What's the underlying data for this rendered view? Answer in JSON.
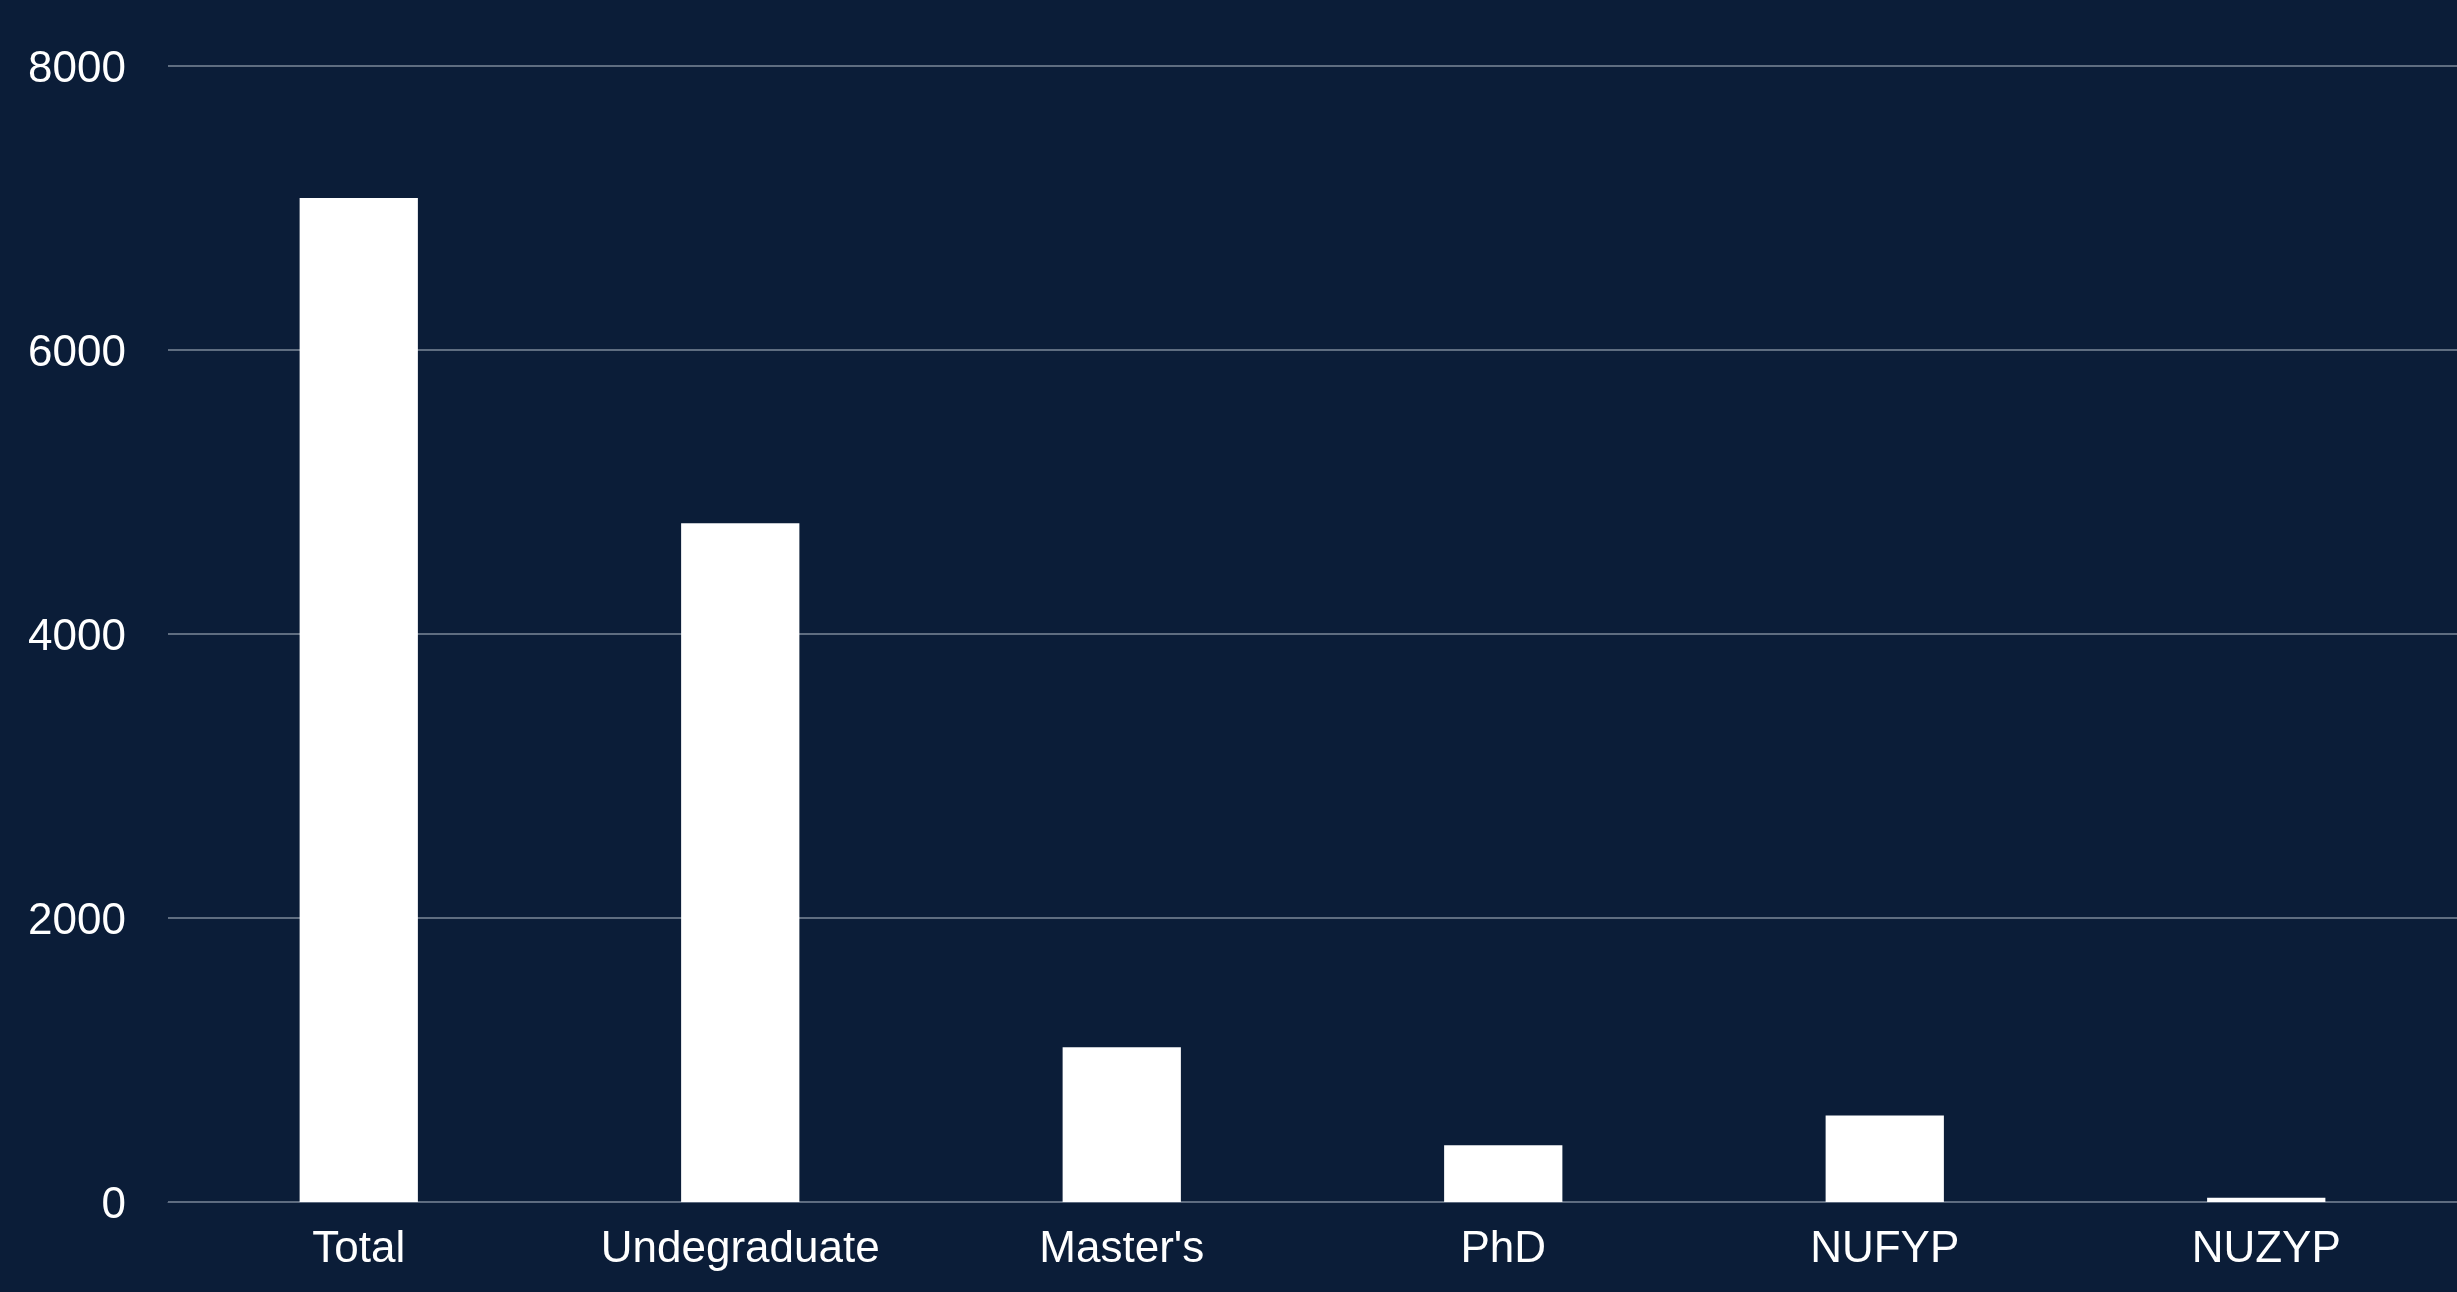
{
  "chart_data": {
    "type": "bar",
    "categories": [
      "Total",
      "Undegraduate",
      "Master's",
      "PhD",
      "NUFYP",
      "NUZYP"
    ],
    "values": [
      7070,
      4780,
      1090,
      400,
      610,
      30
    ],
    "color": "#ffffff",
    "ylim": [
      0,
      8000
    ],
    "yticks": [
      0,
      2000,
      4000,
      6000,
      8000
    ],
    "grid": "y"
  }
}
